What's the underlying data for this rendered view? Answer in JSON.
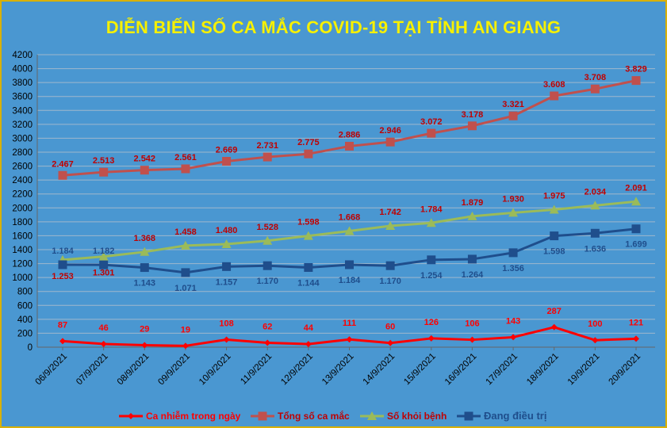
{
  "chart_data": {
    "type": "line",
    "title": "DIỄN BIẾN SỐ CA MẮC COVID-19 TẠI TỈNH AN GIANG",
    "x": [
      "06/9/2021",
      "07/9/2021",
      "08/9/2021",
      "09/9/2021",
      "10/9/2021",
      "11/9/2021",
      "12/9/2021",
      "13/9/2021",
      "14/9/2021",
      "15/9/2021",
      "16/9/2021",
      "17/9/2021",
      "18/9/2021",
      "19/9/2021",
      "20/9/2021"
    ],
    "ylim": [
      0,
      4200
    ],
    "yticks": [
      0,
      200,
      400,
      600,
      800,
      1000,
      1200,
      1400,
      1600,
      1800,
      2000,
      2200,
      2400,
      2600,
      2800,
      3000,
      3200,
      3400,
      3600,
      3800,
      4000,
      4200
    ],
    "grid": true,
    "legend_position": "bottom",
    "series": [
      {
        "name": "Ca nhiễm trong ngày",
        "color": "#ff0000",
        "label_color": "#ff0000",
        "marker": "diamond",
        "values": [
          87,
          46,
          29,
          19,
          108,
          62,
          44,
          111,
          60,
          126,
          106,
          143,
          287,
          100,
          121
        ],
        "labels": [
          "87",
          "46",
          "29",
          "19",
          "108",
          "62",
          "44",
          "111",
          "60",
          "126",
          "106",
          "143",
          "287",
          "100",
          "121"
        ]
      },
      {
        "name": "Tổng số ca mắc",
        "color": "#c0504d",
        "label_color": "#c00000",
        "marker": "square",
        "values": [
          2467,
          2513,
          2542,
          2561,
          2669,
          2731,
          2775,
          2886,
          2946,
          3072,
          3178,
          3321,
          3608,
          3708,
          3829
        ],
        "labels": [
          "2.467",
          "2.513",
          "2.542",
          "2.561",
          "2.669",
          "2.731",
          "2.775",
          "2.886",
          "2.946",
          "3.072",
          "3.178",
          "3.321",
          "3.608",
          "3.708",
          "3.829"
        ]
      },
      {
        "name": "Số khỏi bệnh",
        "color": "#9bbb59",
        "label_color": "#c00000",
        "marker": "triangle",
        "values": [
          1253,
          1301,
          1368,
          1458,
          1480,
          1528,
          1598,
          1668,
          1742,
          1784,
          1879,
          1930,
          1975,
          2034,
          2091
        ],
        "labels": [
          "1.253",
          "1.301",
          "1.368",
          "1.458",
          "1.480",
          "1.528",
          "1.598",
          "1.668",
          "1.742",
          "1.784",
          "1.879",
          "1.930",
          "1.975",
          "2.034",
          "2.091"
        ]
      },
      {
        "name": "Đang điều trị",
        "color": "#1f4e8c",
        "label_color": "#1f4e8c",
        "marker": "square",
        "values": [
          1184,
          1182,
          1143,
          1071,
          1157,
          1170,
          1144,
          1184,
          1170,
          1254,
          1264,
          1356,
          1598,
          1636,
          1699
        ],
        "labels": [
          "1.184",
          "1.182",
          "1.143",
          "1.071",
          "1.157",
          "1.170",
          "1.144",
          "1.184",
          "1.170",
          "1.254",
          "1.264",
          "1.356",
          "1.598",
          "1.636",
          "1.699"
        ]
      }
    ]
  }
}
